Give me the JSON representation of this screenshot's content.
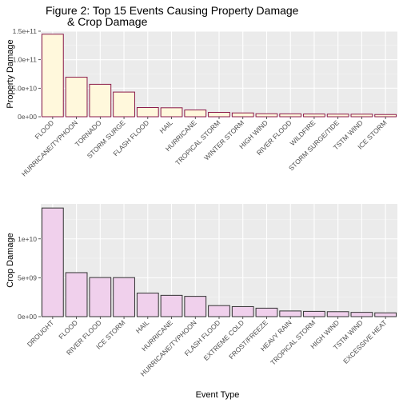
{
  "title": {
    "line1": "Figure 2: Top 15 Events Causing Property Damage",
    "line2": "& Crop Damage"
  },
  "xlabel": "Event Type",
  "chart_data": [
    {
      "type": "bar",
      "ylabel": "Property Damage",
      "ylim": [
        0,
        150000000000
      ],
      "yticks": [
        0,
        50000000000,
        100000000000,
        150000000000
      ],
      "ytick_labels": [
        "0e+00",
        "5.0e+10",
        "1.0e+11",
        "1.5e+11"
      ],
      "fill": "#fff8dc",
      "stroke": "#8b1a4a",
      "grid": true,
      "categories": [
        "FLOOD",
        "HURRICANE/TYPHOON",
        "TORNADO",
        "STORM SURGE",
        "FLASH FLOOD",
        "HAIL",
        "HURRICANE",
        "TROPICAL STORM",
        "WINTER STORM",
        "HIGH WIND",
        "RIVER FLOOD",
        "WILDFIRE",
        "STORM SURGE/TIDE",
        "TSTM WIND",
        "ICE STORM"
      ],
      "values": [
        144700000000,
        69300000000,
        56900000000,
        43300000000,
        16100000000,
        15700000000,
        11900000000,
        7700000000,
        6700000000,
        5300000000,
        5100000000,
        4800000000,
        4600000000,
        4500000000,
        3900000000
      ]
    },
    {
      "type": "bar",
      "ylabel": "Crop Damage",
      "ylim": [
        0,
        14500000000
      ],
      "yticks": [
        0,
        5000000000,
        10000000000
      ],
      "ytick_labels": [
        "0e+00",
        "5e+09",
        "1e+10"
      ],
      "fill": "#f0d0ec",
      "stroke": "#333333",
      "grid": true,
      "categories": [
        "DROUGHT",
        "FLOOD",
        "RIVER FLOOD",
        "ICE STORM",
        "HAIL",
        "HURRICANE",
        "HURRICANE/TYPHOON",
        "FLASH FLOOD",
        "EXTREME COLD",
        "FROST/FREEZE",
        "HEAVY RAIN",
        "TROPICAL STORM",
        "HIGH WIND",
        "TSTM WIND",
        "EXCESSIVE HEAT"
      ],
      "values": [
        13970000000,
        5660000000,
        5030000000,
        5020000000,
        3030000000,
        2740000000,
        2610000000,
        1420000000,
        1290000000,
        1090000000,
        730000000,
        680000000,
        640000000,
        550000000,
        490000000
      ]
    }
  ]
}
